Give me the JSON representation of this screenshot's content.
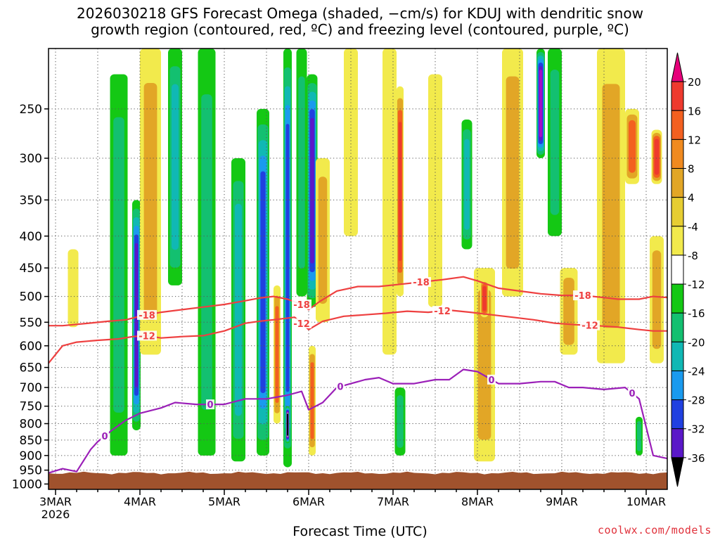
{
  "title": {
    "line1": "2026030218 GFS Forecast Omega (shaded, −cm/s) for KDUJ with dendritic snow",
    "line2": "growth region (contoured, red, ºC) and freezing level (contoured, purple, ºC)"
  },
  "xlabel": "Forecast Time (UTC)",
  "credit": "coolwx.com/models",
  "chart_data": {
    "type": "heatmap",
    "title": "2026030218 GFS Forecast Omega (shaded, −cm/s) for KDUJ with dendritic snow growth region (contoured, red, ºC) and freezing level (contoured, purple, ºC)",
    "xlabel": "Forecast Time (UTC)",
    "ylabel": "",
    "x_start_label": "3MAR",
    "x_year_label": "2026",
    "x_ticks": [
      {
        "label": "3MAR",
        "hours": 0
      },
      {
        "label": "4MAR",
        "hours": 24
      },
      {
        "label": "5MAR",
        "hours": 48
      },
      {
        "label": "6MAR",
        "hours": 72
      },
      {
        "label": "7MAR",
        "hours": 96
      },
      {
        "label": "8MAR",
        "hours": 120
      },
      {
        "label": "9MAR",
        "hours": 144
      },
      {
        "label": "10MAR",
        "hours": 168
      }
    ],
    "xlim_hours": [
      -2,
      174
    ],
    "y_ticks": [
      250,
      300,
      350,
      400,
      450,
      500,
      550,
      600,
      650,
      700,
      750,
      800,
      850,
      900,
      950,
      1000
    ],
    "ylim": [
      200,
      1020
    ],
    "y_scale": "log",
    "grid": true,
    "colorbar": {
      "labels": [
        20,
        16,
        12,
        8,
        4,
        -4,
        -8,
        -12,
        -16,
        -20,
        -24,
        -28,
        -32,
        -36
      ],
      "colors_top_to_bottom": [
        "#e6007a",
        "#ee3a2e",
        "#f36020",
        "#f08a1f",
        "#e2a626",
        "#e6cd32",
        "#f2ea4c",
        "#ffffff",
        "#14c814",
        "#13c070",
        "#10b8b4",
        "#1a9aee",
        "#2040e0",
        "#5a18c8",
        "#a010c8",
        "#a8a8a8",
        "#000000"
      ]
    },
    "terrain_color": "#a0522d",
    "surface_pressure": 960,
    "contours": {
      "dgz_top": {
        "label": "-18",
        "color": "#ee4040",
        "points": [
          [
            -2,
            557
          ],
          [
            2,
            557
          ],
          [
            8,
            553
          ],
          [
            15,
            548
          ],
          [
            20,
            545
          ],
          [
            24,
            538
          ],
          [
            30,
            530
          ],
          [
            36,
            525
          ],
          [
            42,
            520
          ],
          [
            48,
            515
          ],
          [
            54,
            508
          ],
          [
            58,
            503
          ],
          [
            62,
            500
          ],
          [
            66,
            505
          ],
          [
            70,
            515
          ],
          [
            72,
            525
          ],
          [
            75,
            510
          ],
          [
            80,
            490
          ],
          [
            86,
            482
          ],
          [
            92,
            482
          ],
          [
            98,
            478
          ],
          [
            104,
            474
          ],
          [
            110,
            470
          ],
          [
            116,
            465
          ],
          [
            120,
            472
          ],
          [
            126,
            485
          ],
          [
            132,
            490
          ],
          [
            138,
            495
          ],
          [
            144,
            498
          ],
          [
            150,
            498
          ],
          [
            156,
            502
          ],
          [
            160,
            505
          ],
          [
            166,
            505
          ],
          [
            170,
            500
          ],
          [
            174,
            502
          ]
        ],
        "label_hours": [
          26,
          70,
          104,
          150
        ]
      },
      "dgz_bottom": {
        "label": "-12",
        "color": "#ee4040",
        "points": [
          [
            -2,
            640
          ],
          [
            2,
            600
          ],
          [
            6,
            592
          ],
          [
            12,
            588
          ],
          [
            18,
            585
          ],
          [
            22,
            580
          ],
          [
            26,
            578
          ],
          [
            30,
            583
          ],
          [
            36,
            580
          ],
          [
            42,
            578
          ],
          [
            48,
            568
          ],
          [
            54,
            552
          ],
          [
            58,
            548
          ],
          [
            62,
            545
          ],
          [
            68,
            540
          ],
          [
            72,
            565
          ],
          [
            76,
            548
          ],
          [
            82,
            538
          ],
          [
            88,
            535
          ],
          [
            94,
            532
          ],
          [
            100,
            528
          ],
          [
            106,
            530
          ],
          [
            112,
            526
          ],
          [
            118,
            530
          ],
          [
            124,
            535
          ],
          [
            130,
            540
          ],
          [
            136,
            545
          ],
          [
            142,
            552
          ],
          [
            148,
            555
          ],
          [
            154,
            557
          ],
          [
            160,
            560
          ],
          [
            166,
            565
          ],
          [
            170,
            568
          ],
          [
            174,
            568
          ]
        ],
        "label_hours": [
          26,
          70,
          110,
          152
        ]
      },
      "freezing": {
        "label": "0",
        "color": "#9b20b8",
        "points": [
          [
            -2,
            960
          ],
          [
            2,
            945
          ],
          [
            6,
            955
          ],
          [
            10,
            880
          ],
          [
            12,
            855
          ],
          [
            16,
            820
          ],
          [
            20,
            790
          ],
          [
            24,
            770
          ],
          [
            30,
            755
          ],
          [
            34,
            740
          ],
          [
            40,
            745
          ],
          [
            48,
            745
          ],
          [
            54,
            730
          ],
          [
            60,
            730
          ],
          [
            66,
            720
          ],
          [
            70,
            710
          ],
          [
            72,
            760
          ],
          [
            76,
            740
          ],
          [
            80,
            700
          ],
          [
            84,
            690
          ],
          [
            88,
            680
          ],
          [
            92,
            675
          ],
          [
            96,
            690
          ],
          [
            102,
            690
          ],
          [
            108,
            680
          ],
          [
            112,
            680
          ],
          [
            116,
            655
          ],
          [
            120,
            660
          ],
          [
            126,
            690
          ],
          [
            132,
            690
          ],
          [
            138,
            685
          ],
          [
            142,
            685
          ],
          [
            146,
            700
          ],
          [
            150,
            700
          ],
          [
            156,
            705
          ],
          [
            162,
            700
          ],
          [
            166,
            730
          ],
          [
            170,
            900
          ],
          [
            174,
            910
          ]
        ],
        "label_hours": [
          14,
          44,
          81,
          124,
          164
        ]
      }
    },
    "omega_features": [
      {
        "hour_center": 5,
        "hour_halfwidth": 1.5,
        "p_top": 420,
        "p_bottom": 560,
        "value": 6
      },
      {
        "hour_center": 18,
        "hour_halfwidth": 2.5,
        "p_top": 220,
        "p_bottom": 900,
        "value": -8
      },
      {
        "hour_center": 23,
        "hour_halfwidth": 1.2,
        "p_top": 350,
        "p_bottom": 820,
        "value": -24
      },
      {
        "hour_center": 27,
        "hour_halfwidth": 3,
        "p_top": 200,
        "p_bottom": 620,
        "value": 10
      },
      {
        "hour_center": 34,
        "hour_halfwidth": 2,
        "p_top": 200,
        "p_bottom": 480,
        "value": -14
      },
      {
        "hour_center": 43,
        "hour_halfwidth": 2.5,
        "p_top": 200,
        "p_bottom": 900,
        "value": -10
      },
      {
        "hour_center": 52,
        "hour_halfwidth": 2,
        "p_top": 300,
        "p_bottom": 920,
        "value": -12
      },
      {
        "hour_center": 59,
        "hour_halfwidth": 1.8,
        "p_top": 250,
        "p_bottom": 900,
        "value": -20
      },
      {
        "hour_center": 63,
        "hour_halfwidth": 1,
        "p_top": 480,
        "p_bottom": 800,
        "value": 14
      },
      {
        "hour_center": 66,
        "hour_halfwidth": 1.2,
        "p_top": 200,
        "p_bottom": 940,
        "value": -22
      },
      {
        "hour_center": 66,
        "hour_halfwidth": 0.6,
        "p_top": 750,
        "p_bottom": 860,
        "value": -36
      },
      {
        "hour_center": 70,
        "hour_halfwidth": 1.5,
        "p_top": 200,
        "p_bottom": 500,
        "value": -8
      },
      {
        "hour_center": 73,
        "hour_halfwidth": 1.5,
        "p_top": 220,
        "p_bottom": 520,
        "value": -24
      },
      {
        "hour_center": 73,
        "hour_halfwidth": 1,
        "p_top": 600,
        "p_bottom": 900,
        "value": 12
      },
      {
        "hour_center": 76,
        "hour_halfwidth": 2,
        "p_top": 300,
        "p_bottom": 550,
        "value": 8
      },
      {
        "hour_center": 84,
        "hour_halfwidth": 2,
        "p_top": 200,
        "p_bottom": 400,
        "value": 6
      },
      {
        "hour_center": 98,
        "hour_halfwidth": 1,
        "p_top": 230,
        "p_bottom": 500,
        "value": 16
      },
      {
        "hour_center": 95,
        "hour_halfwidth": 2,
        "p_top": 200,
        "p_bottom": 620,
        "value": 6
      },
      {
        "hour_center": 98,
        "hour_halfwidth": 1.5,
        "p_top": 700,
        "p_bottom": 900,
        "value": -8
      },
      {
        "hour_center": 108,
        "hour_halfwidth": 2,
        "p_top": 220,
        "p_bottom": 520,
        "value": 6
      },
      {
        "hour_center": 117,
        "hour_halfwidth": 1.5,
        "p_top": 260,
        "p_bottom": 420,
        "value": -14
      },
      {
        "hour_center": 122,
        "hour_halfwidth": 3,
        "p_top": 450,
        "p_bottom": 920,
        "value": 8
      },
      {
        "hour_center": 122,
        "hour_halfwidth": 1.2,
        "p_top": 470,
        "p_bottom": 540,
        "value": 16
      },
      {
        "hour_center": 130,
        "hour_halfwidth": 3,
        "p_top": 200,
        "p_bottom": 500,
        "value": 10
      },
      {
        "hour_center": 138,
        "hour_halfwidth": 1.2,
        "p_top": 200,
        "p_bottom": 300,
        "value": -28
      },
      {
        "hour_center": 142,
        "hour_halfwidth": 2,
        "p_top": 200,
        "p_bottom": 400,
        "value": -10
      },
      {
        "hour_center": 146,
        "hour_halfwidth": 2.5,
        "p_top": 450,
        "p_bottom": 620,
        "value": 10
      },
      {
        "hour_center": 158,
        "hour_halfwidth": 4,
        "p_top": 200,
        "p_bottom": 640,
        "value": 8
      },
      {
        "hour_center": 164,
        "hour_halfwidth": 2,
        "p_top": 250,
        "p_bottom": 330,
        "value": 14
      },
      {
        "hour_center": 171,
        "hour_halfwidth": 1.5,
        "p_top": 270,
        "p_bottom": 330,
        "value": 18
      },
      {
        "hour_center": 171,
        "hour_halfwidth": 2,
        "p_top": 400,
        "p_bottom": 640,
        "value": 10
      },
      {
        "hour_center": 166,
        "hour_halfwidth": 1,
        "p_top": 780,
        "p_bottom": 900,
        "value": -8
      }
    ]
  }
}
